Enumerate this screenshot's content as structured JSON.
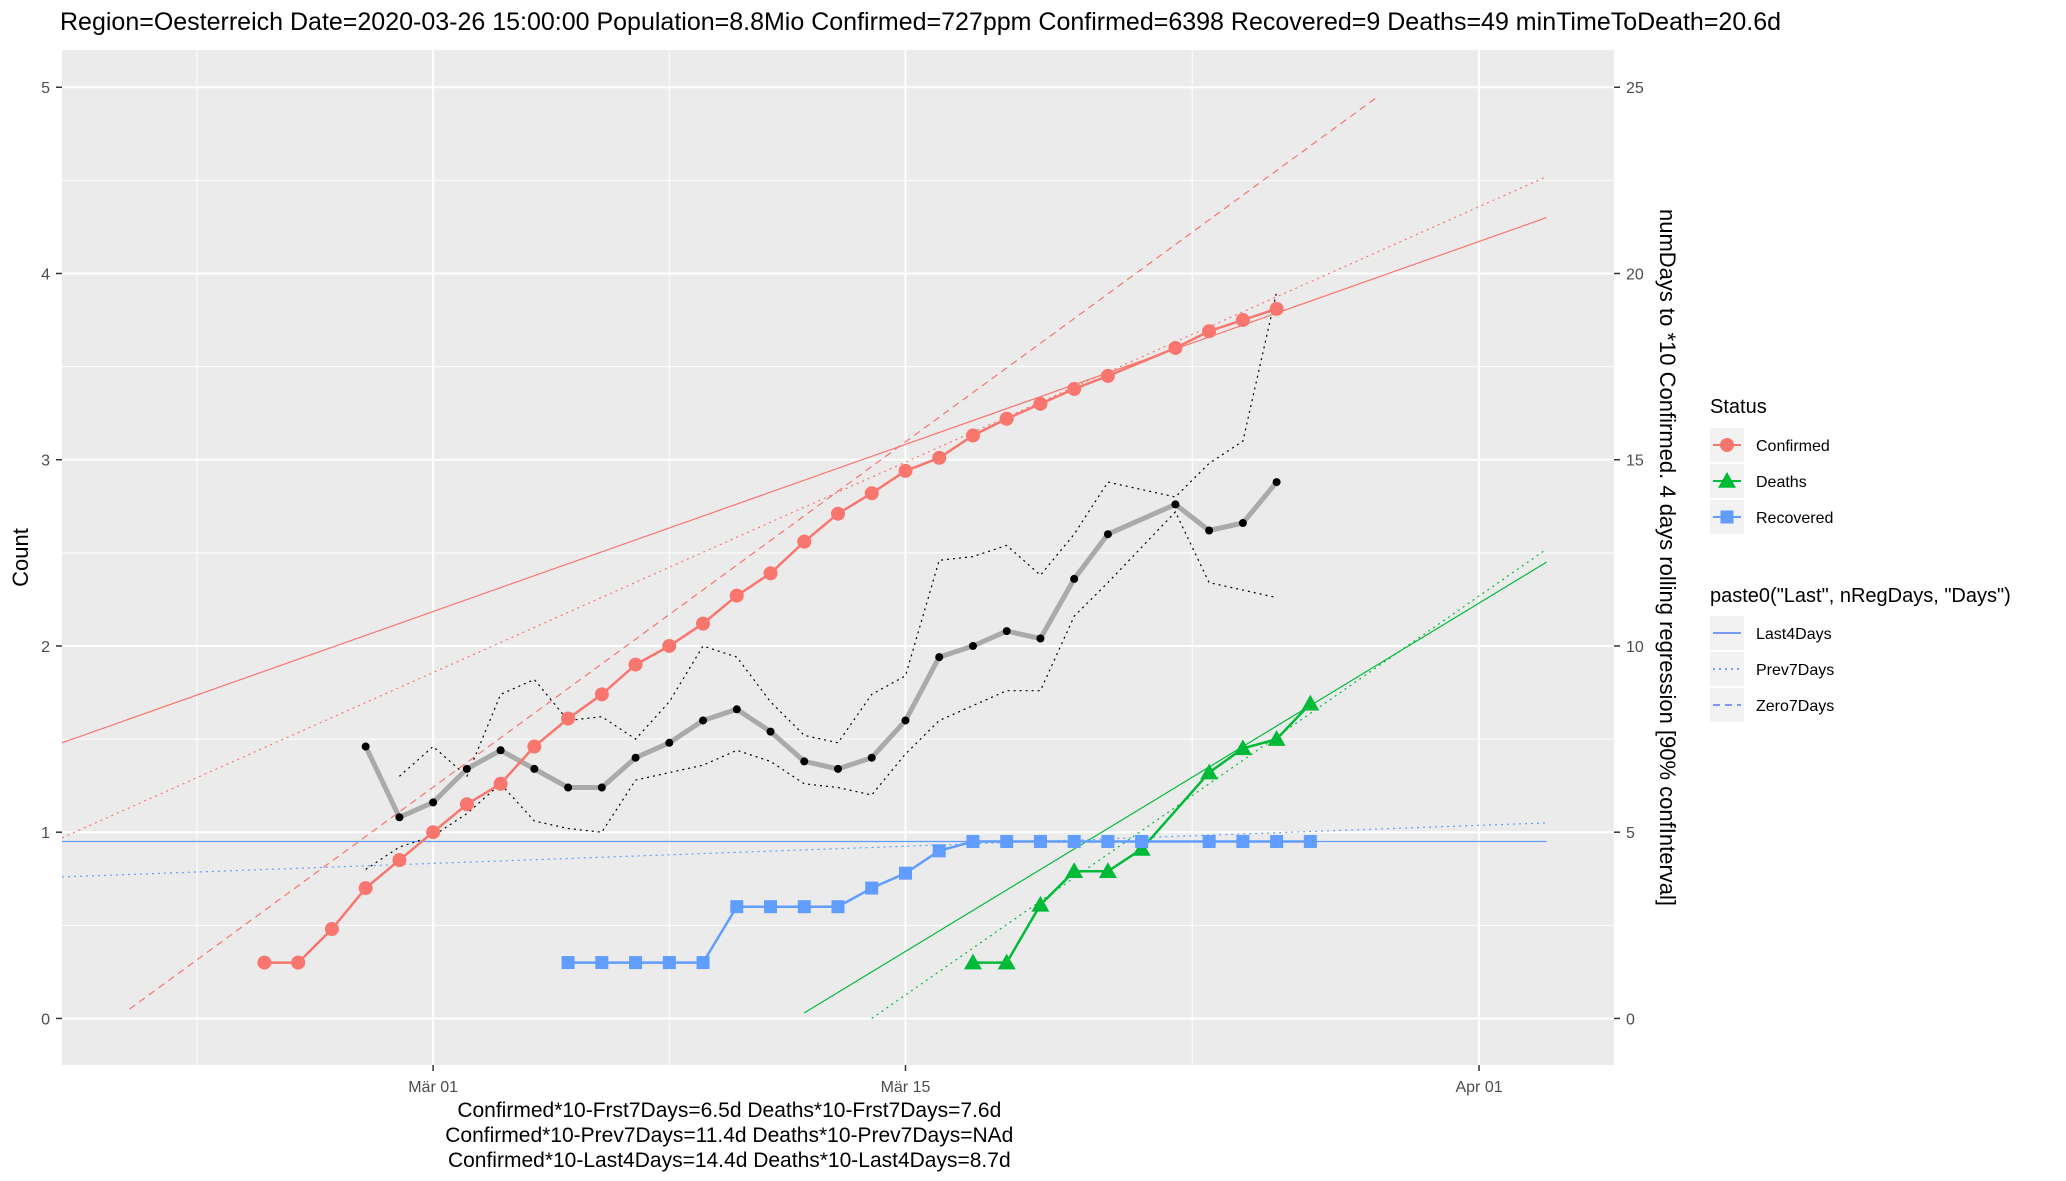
{
  "title": "Region=Oesterreich Date=2020-03-26 15:00:00  Population=8.8Mio Confirmed=727ppm  Confirmed=6398  Recovered=9 Deaths=49  minTimeToDeath=20.6d",
  "colors": {
    "confirmed": "#F8766D",
    "deaths": "#00BA38",
    "recovered": "#619CFF",
    "rolling": "#aaaaaa",
    "panel": "#EBEBEB",
    "grid": "#ffffff"
  },
  "chart_data": {
    "type": "line",
    "grid": true,
    "legend_position": "right",
    "x_axis": {
      "type": "date",
      "range": [
        "2020-02-19",
        "2020-04-05"
      ],
      "ticks": [
        {
          "date": "2020-03-01",
          "label": "Mär 01"
        },
        {
          "date": "2020-03-15",
          "label": "Mär 15"
        },
        {
          "date": "2020-04-01",
          "label": "Apr 01"
        }
      ]
    },
    "y_axis": {
      "title": "Count",
      "range": [
        -0.25,
        5.2
      ],
      "ticks": [
        0,
        1,
        2,
        3,
        4,
        5
      ]
    },
    "y2_axis": {
      "title": "numDays to *10 Confirmed. 4 days rolling regression [90% confInterval]",
      "range": [
        -1.25,
        26
      ],
      "ticks": [
        0,
        5,
        10,
        15,
        20,
        25
      ]
    },
    "series": [
      {
        "name": "Confirmed",
        "color_key": "confirmed",
        "shape": "circle",
        "points": [
          [
            "2020-02-25",
            0.3
          ],
          [
            "2020-02-26",
            0.3
          ],
          [
            "2020-02-27",
            0.48
          ],
          [
            "2020-02-28",
            0.7
          ],
          [
            "2020-02-29",
            0.85
          ],
          [
            "2020-03-01",
            1.0
          ],
          [
            "2020-03-02",
            1.15
          ],
          [
            "2020-03-03",
            1.26
          ],
          [
            "2020-03-04",
            1.46
          ],
          [
            "2020-03-05",
            1.61
          ],
          [
            "2020-03-06",
            1.74
          ],
          [
            "2020-03-07",
            1.9
          ],
          [
            "2020-03-08",
            2.0
          ],
          [
            "2020-03-09",
            2.12
          ],
          [
            "2020-03-10",
            2.27
          ],
          [
            "2020-03-11",
            2.39
          ],
          [
            "2020-03-12",
            2.56
          ],
          [
            "2020-03-13",
            2.71
          ],
          [
            "2020-03-14",
            2.82
          ],
          [
            "2020-03-15",
            2.94
          ],
          [
            "2020-03-16",
            3.01
          ],
          [
            "2020-03-17",
            3.13
          ],
          [
            "2020-03-18",
            3.22
          ],
          [
            "2020-03-19",
            3.3
          ],
          [
            "2020-03-20",
            3.38
          ],
          [
            "2020-03-21",
            3.45
          ],
          [
            "2020-03-23",
            3.6
          ],
          [
            "2020-03-24",
            3.69
          ],
          [
            "2020-03-25",
            3.75
          ],
          [
            "2020-03-26",
            3.81
          ]
        ]
      },
      {
        "name": "Deaths",
        "color_key": "deaths",
        "shape": "triangle",
        "points": [
          [
            "2020-03-17",
            0.3
          ],
          [
            "2020-03-18",
            0.3
          ],
          [
            "2020-03-19",
            0.61
          ],
          [
            "2020-03-20",
            0.79
          ],
          [
            "2020-03-21",
            0.79
          ],
          [
            "2020-03-22",
            0.91
          ],
          [
            "2020-03-24",
            1.32
          ],
          [
            "2020-03-25",
            1.45
          ],
          [
            "2020-03-26",
            1.5
          ],
          [
            "2020-03-27",
            1.69
          ]
        ]
      },
      {
        "name": "Recovered",
        "color_key": "recovered",
        "shape": "square",
        "points": [
          [
            "2020-03-05",
            0.3
          ],
          [
            "2020-03-06",
            0.3
          ],
          [
            "2020-03-07",
            0.3
          ],
          [
            "2020-03-08",
            0.3
          ],
          [
            "2020-03-09",
            0.3
          ],
          [
            "2020-03-10",
            0.6
          ],
          [
            "2020-03-11",
            0.6
          ],
          [
            "2020-03-12",
            0.6
          ],
          [
            "2020-03-13",
            0.6
          ],
          [
            "2020-03-14",
            0.7
          ],
          [
            "2020-03-15",
            0.78
          ],
          [
            "2020-03-16",
            0.9
          ],
          [
            "2020-03-17",
            0.95
          ],
          [
            "2020-03-18",
            0.95
          ],
          [
            "2020-03-19",
            0.95
          ],
          [
            "2020-03-20",
            0.95
          ],
          [
            "2020-03-21",
            0.95
          ],
          [
            "2020-03-22",
            0.95
          ],
          [
            "2020-03-24",
            0.95
          ],
          [
            "2020-03-25",
            0.95
          ],
          [
            "2020-03-26",
            0.95
          ],
          [
            "2020-03-27",
            0.95
          ]
        ]
      }
    ],
    "regression_lines": [
      {
        "name": "Last4Days",
        "status": "Confirmed",
        "dash": "solid",
        "from": [
          "2020-02-19",
          1.48
        ],
        "to": [
          "2020-04-03",
          4.3
        ]
      },
      {
        "name": "Prev7Days",
        "status": "Confirmed",
        "dash": "dotted",
        "from": [
          "2020-02-19",
          0.97
        ],
        "to": [
          "2020-04-03",
          4.52
        ]
      },
      {
        "name": "Zero7Days",
        "status": "Confirmed",
        "dash": "dashed",
        "from": [
          "2020-02-21",
          0.05
        ],
        "to": [
          "2020-03-29",
          4.95
        ]
      },
      {
        "name": "Last4Days",
        "status": "Deaths",
        "dash": "solid",
        "from": [
          "2020-03-12",
          0.03
        ],
        "to": [
          "2020-04-03",
          2.45
        ]
      },
      {
        "name": "Prev7Days",
        "status": "Deaths",
        "dash": "dotted",
        "from": [
          "2020-03-14",
          0.0
        ],
        "to": [
          "2020-04-03",
          2.52
        ]
      },
      {
        "name": "Last4Days",
        "status": "Recovered",
        "dash": "solid",
        "from": [
          "2020-02-19",
          0.95
        ],
        "to": [
          "2020-04-03",
          0.95
        ]
      },
      {
        "name": "Prev7Days",
        "status": "Recovered",
        "dash": "dotted",
        "from": [
          "2020-02-19",
          0.76
        ],
        "to": [
          "2020-04-03",
          1.05
        ]
      }
    ],
    "rolling_regression": {
      "axis": "y2",
      "unit": "days",
      "points": [
        [
          "2020-02-28",
          7.3
        ],
        [
          "2020-02-29",
          5.4
        ],
        [
          "2020-03-01",
          5.8
        ],
        [
          "2020-03-02",
          6.7
        ],
        [
          "2020-03-03",
          7.2
        ],
        [
          "2020-03-04",
          6.7
        ],
        [
          "2020-03-05",
          6.2
        ],
        [
          "2020-03-06",
          6.2
        ],
        [
          "2020-03-07",
          7.0
        ],
        [
          "2020-03-08",
          7.4
        ],
        [
          "2020-03-09",
          8.0
        ],
        [
          "2020-03-10",
          8.3
        ],
        [
          "2020-03-11",
          7.7
        ],
        [
          "2020-03-12",
          6.9
        ],
        [
          "2020-03-13",
          6.7
        ],
        [
          "2020-03-14",
          7.0
        ],
        [
          "2020-03-15",
          8.0
        ],
        [
          "2020-03-16",
          9.7
        ],
        [
          "2020-03-17",
          10.0
        ],
        [
          "2020-03-18",
          10.4
        ],
        [
          "2020-03-19",
          10.2
        ],
        [
          "2020-03-20",
          11.8
        ],
        [
          "2020-03-21",
          13.0
        ],
        [
          "2020-03-23",
          13.8
        ],
        [
          "2020-03-24",
          13.1
        ],
        [
          "2020-03-25",
          13.3
        ],
        [
          "2020-03-26",
          14.4
        ]
      ],
      "upper": [
        [
          "2020-02-29",
          6.5
        ],
        [
          "2020-03-01",
          7.3
        ],
        [
          "2020-03-02",
          6.5
        ],
        [
          "2020-03-03",
          8.7
        ],
        [
          "2020-03-04",
          9.1
        ],
        [
          "2020-03-05",
          8.0
        ],
        [
          "2020-03-06",
          8.1
        ],
        [
          "2020-03-07",
          7.5
        ],
        [
          "2020-03-08",
          8.5
        ],
        [
          "2020-03-09",
          10.0
        ],
        [
          "2020-03-10",
          9.7
        ],
        [
          "2020-03-11",
          8.5
        ],
        [
          "2020-03-12",
          7.6
        ],
        [
          "2020-03-13",
          7.4
        ],
        [
          "2020-03-14",
          8.7
        ],
        [
          "2020-03-15",
          9.2
        ],
        [
          "2020-03-16",
          12.3
        ],
        [
          "2020-03-17",
          12.4
        ],
        [
          "2020-03-18",
          12.7
        ],
        [
          "2020-03-19",
          11.9
        ],
        [
          "2020-03-20",
          13.0
        ],
        [
          "2020-03-21",
          14.4
        ],
        [
          "2020-03-23",
          14.0
        ],
        [
          "2020-03-24",
          14.9
        ],
        [
          "2020-03-25",
          15.5
        ],
        [
          "2020-03-26",
          19.5
        ]
      ],
      "lower": [
        [
          "2020-02-28",
          4.0
        ],
        [
          "2020-02-29",
          4.6
        ],
        [
          "2020-03-01",
          4.9
        ],
        [
          "2020-03-02",
          5.5
        ],
        [
          "2020-03-03",
          6.3
        ],
        [
          "2020-03-04",
          5.3
        ],
        [
          "2020-03-05",
          5.1
        ],
        [
          "2020-03-06",
          5.0
        ],
        [
          "2020-03-07",
          6.4
        ],
        [
          "2020-03-08",
          6.6
        ],
        [
          "2020-03-09",
          6.8
        ],
        [
          "2020-03-10",
          7.2
        ],
        [
          "2020-03-11",
          6.9
        ],
        [
          "2020-03-12",
          6.3
        ],
        [
          "2020-03-13",
          6.2
        ],
        [
          "2020-03-14",
          6.0
        ],
        [
          "2020-03-15",
          7.1
        ],
        [
          "2020-03-16",
          8.0
        ],
        [
          "2020-03-17",
          8.4
        ],
        [
          "2020-03-18",
          8.8
        ],
        [
          "2020-03-19",
          8.8
        ],
        [
          "2020-03-20",
          10.8
        ],
        [
          "2020-03-21",
          11.7
        ],
        [
          "2020-03-23",
          13.6
        ],
        [
          "2020-03-24",
          11.7
        ],
        [
          "2020-03-25",
          11.5
        ],
        [
          "2020-03-26",
          11.3
        ]
      ]
    }
  },
  "legend": {
    "status_title": "Status",
    "status_items": [
      "Confirmed",
      "Deaths",
      "Recovered"
    ],
    "regression_title": "paste0(\"Last\", nRegDays, \"Days\")",
    "regression_items": [
      "Last4Days",
      "Prev7Days",
      "Zero7Days"
    ]
  },
  "caption": [
    "Confirmed*10-Frst7Days=6.5d  Deaths*10-Frst7Days=7.6d",
    "Confirmed*10-Prev7Days=11.4d  Deaths*10-Prev7Days=NAd",
    "Confirmed*10-Last4Days=14.4d  Deaths*10-Last4Days=8.7d"
  ]
}
